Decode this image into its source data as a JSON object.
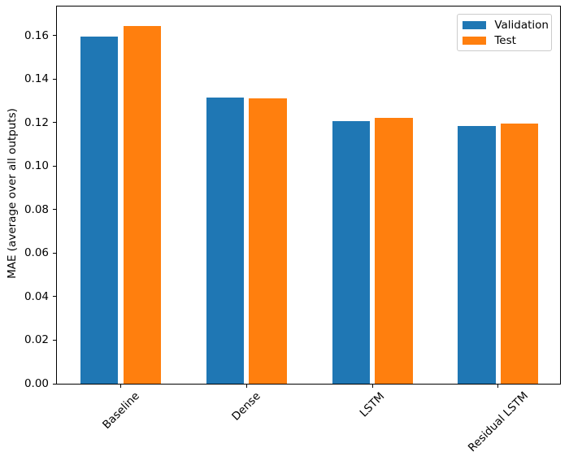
{
  "chart_data": {
    "type": "bar",
    "title": "",
    "xlabel": "",
    "ylabel": "MAE (average over all outputs)",
    "categories": [
      "Baseline",
      "Dense",
      "LSTM",
      "Residual LSTM"
    ],
    "series": [
      {
        "name": "Validation",
        "color": "#1f77b4",
        "values": [
          0.1595,
          0.1315,
          0.1205,
          0.1185
        ]
      },
      {
        "name": "Test",
        "color": "#ff7f0e",
        "values": [
          0.1645,
          0.131,
          0.122,
          0.1197
        ]
      }
    ],
    "ylim": [
      0,
      0.1733
    ],
    "xlim": [
      -0.5075,
      3.4925
    ],
    "yticks": [
      0.0,
      0.02,
      0.04,
      0.06,
      0.08,
      0.1,
      0.12,
      0.14,
      0.16
    ],
    "ytick_labels": [
      "0.00",
      "0.02",
      "0.04",
      "0.06",
      "0.08",
      "0.10",
      "0.12",
      "0.14",
      "0.16"
    ],
    "bar_width": 0.3,
    "series_offsets": [
      -0.17,
      0.17
    ],
    "xtick_rotation_deg": 45,
    "grid": false,
    "legend": {
      "position": "upper right"
    },
    "colors": {
      "axis": "#000000",
      "text": "#000000",
      "legend_border": "#cccccc",
      "background": "#ffffff"
    }
  }
}
